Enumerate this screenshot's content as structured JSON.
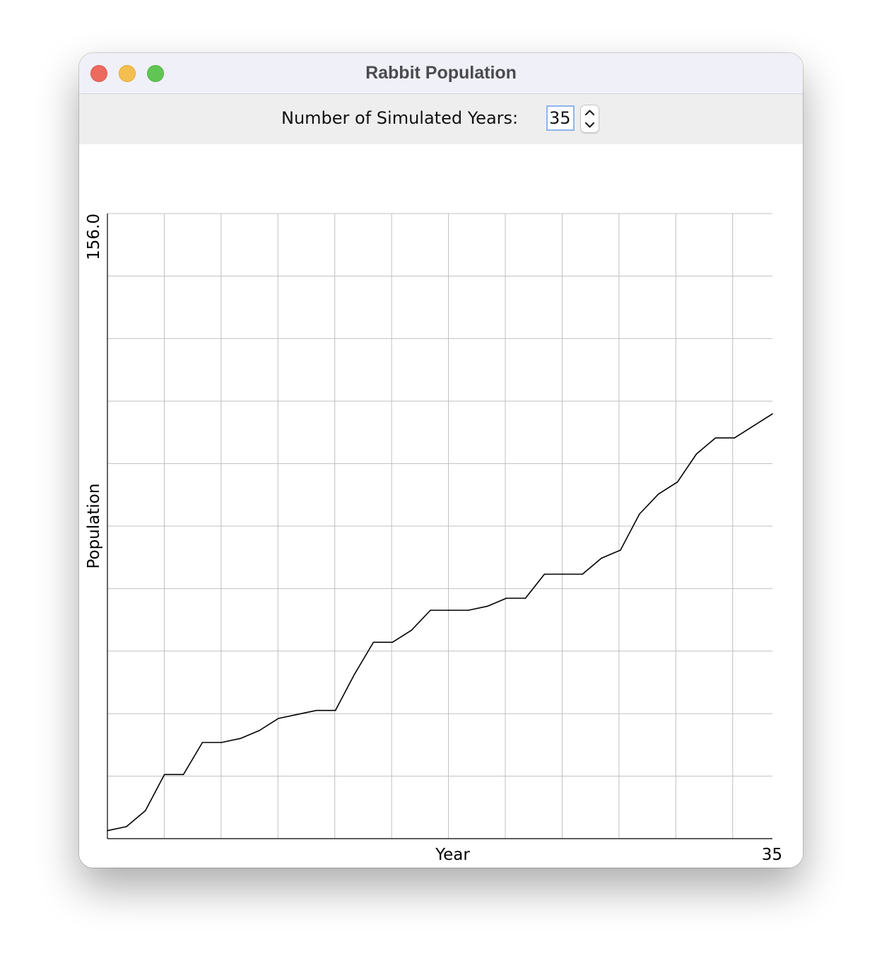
{
  "window": {
    "title": "Rabbit Population"
  },
  "controls": {
    "years_label": "Number of Simulated Years:",
    "years_value": "35"
  },
  "icons": {
    "close": "close-traffic-light",
    "minimize": "minimize-traffic-light",
    "maximize": "maximize-traffic-light",
    "stepper_up": "chevron-up-icon",
    "stepper_down": "chevron-down-icon"
  },
  "colors": {
    "close": "#ed6a5e",
    "minimize": "#f5bf4f",
    "maximize": "#61c554",
    "line": "#000000",
    "grid": "#c0c0c0"
  },
  "chart_data": {
    "type": "line",
    "title": "",
    "xlabel": "Year",
    "ylabel": "Population",
    "xlim": [
      0,
      35
    ],
    "ylim": [
      0,
      156
    ],
    "y_max_label": "156.0",
    "x_max_label": "35",
    "grid": true,
    "x_gridlines": 11,
    "y_gridlines": 10,
    "series": [
      {
        "x": [
          0,
          1,
          2,
          3,
          4,
          5,
          6,
          7,
          8,
          9,
          10,
          11,
          12,
          13,
          14,
          15,
          16,
          17,
          18,
          19,
          20,
          21,
          22,
          23,
          24,
          25,
          26,
          27,
          28,
          29,
          30,
          31,
          32,
          33,
          34,
          35
        ],
        "values": [
          2,
          3,
          7,
          16,
          16,
          24,
          24,
          25,
          27,
          30,
          31,
          32,
          32,
          41,
          49,
          49,
          52,
          57,
          57,
          57,
          58,
          60,
          60,
          66,
          66,
          66,
          70,
          72,
          81,
          86,
          89,
          96,
          100,
          100,
          103,
          106
        ]
      }
    ]
  }
}
